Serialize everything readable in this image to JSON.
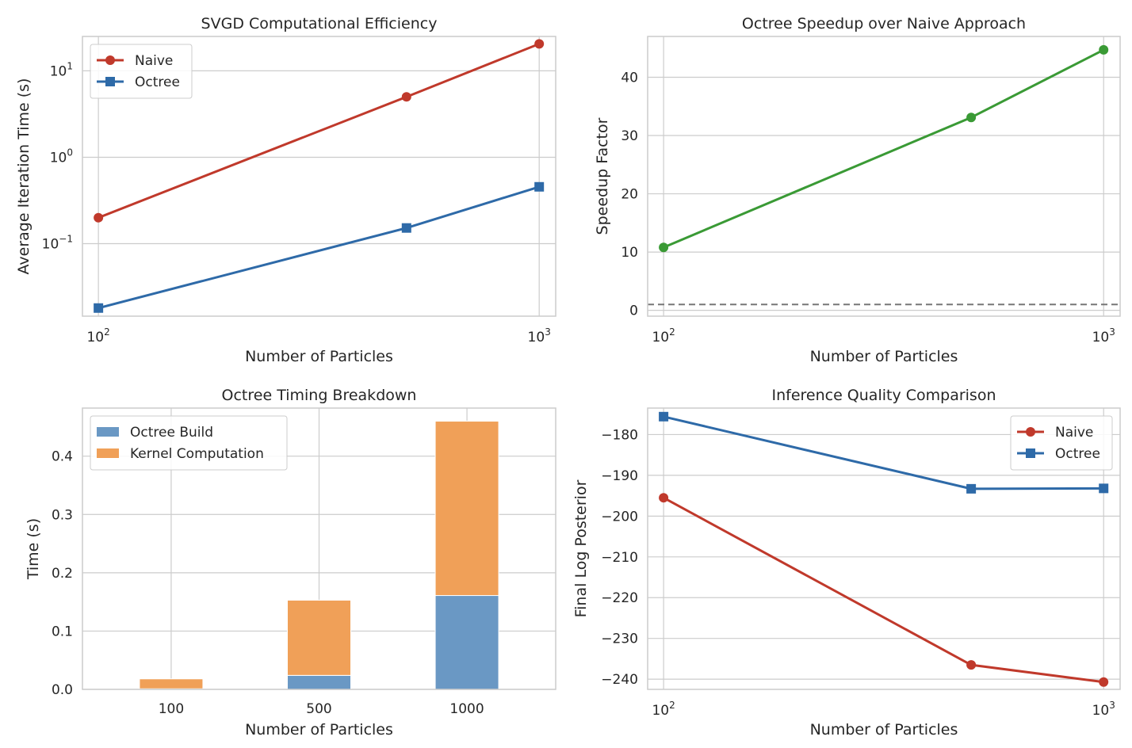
{
  "chart_data": [
    {
      "id": "efficiency",
      "type": "line",
      "title": "SVGD Computational Efficiency",
      "xlabel": "Number of Particles",
      "ylabel": "Average Iteration Time (s)",
      "xscale": "log",
      "yscale": "log",
      "xlim": [
        92,
        1090
      ],
      "ylim": [
        0.0145,
        25
      ],
      "xticks": [
        {
          "value": 100,
          "base": "10",
          "exp": "2"
        },
        {
          "value": 1000,
          "base": "10",
          "exp": "3"
        }
      ],
      "yticks": [
        {
          "value": 0.1,
          "base": "10",
          "exp": "−1"
        },
        {
          "value": 1,
          "base": "10",
          "exp": "0"
        },
        {
          "value": 10,
          "base": "10",
          "exp": "1"
        }
      ],
      "legend": "top-left",
      "x": [
        100,
        500,
        1000
      ],
      "series": [
        {
          "name": "Naive",
          "color": "#c0392b",
          "marker": "circle",
          "values": [
            0.2,
            5.0,
            20.5
          ]
        },
        {
          "name": "Octree",
          "color": "#2e6aa8",
          "marker": "square",
          "values": [
            0.018,
            0.152,
            0.455
          ]
        }
      ]
    },
    {
      "id": "speedup",
      "type": "line",
      "title": "Octree Speedup over Naive Approach",
      "xlabel": "Number of Particles",
      "ylabel": "Speedup Factor",
      "xscale": "log",
      "yscale": "linear",
      "xlim": [
        92,
        1090
      ],
      "ylim": [
        -1.0,
        47.0
      ],
      "xticks": [
        {
          "value": 100,
          "base": "10",
          "exp": "2"
        },
        {
          "value": 1000,
          "base": "10",
          "exp": "3"
        }
      ],
      "yticks": [
        {
          "value": 0,
          "label": "0"
        },
        {
          "value": 10,
          "label": "10"
        },
        {
          "value": 20,
          "label": "20"
        },
        {
          "value": 30,
          "label": "30"
        },
        {
          "value": 40,
          "label": "40"
        }
      ],
      "reference_line": {
        "y": 1,
        "style": "dashed",
        "color": "#777777"
      },
      "x": [
        100,
        500,
        1000
      ],
      "series": [
        {
          "name": "Speedup",
          "color": "#3a9a35",
          "marker": "circle",
          "values": [
            10.8,
            33.1,
            44.7
          ]
        }
      ]
    },
    {
      "id": "breakdown",
      "type": "bar",
      "stacked": true,
      "title": "Octree Timing Breakdown",
      "xlabel": "Number of Particles",
      "ylabel": "Time (s)",
      "categories": [
        "100",
        "500",
        "1000"
      ],
      "ylim": [
        0,
        0.4825
      ],
      "yticks": [
        {
          "value": 0.0,
          "label": "0.0"
        },
        {
          "value": 0.1,
          "label": "0.1"
        },
        {
          "value": 0.2,
          "label": "0.2"
        },
        {
          "value": 0.3,
          "label": "0.3"
        },
        {
          "value": 0.4,
          "label": "0.4"
        }
      ],
      "legend": "top-left",
      "series": [
        {
          "name": "Octree Build",
          "color": "#6a98c4",
          "values": [
            0.001,
            0.024,
            0.161
          ]
        },
        {
          "name": "Kernel Computation",
          "color": "#f0a058",
          "values": [
            0.017,
            0.129,
            0.299
          ]
        }
      ]
    },
    {
      "id": "quality",
      "type": "line",
      "title": "Inference Quality Comparison",
      "xlabel": "Number of Particles",
      "ylabel": "Final Log Posterior",
      "xscale": "log",
      "yscale": "linear",
      "xlim": [
        92,
        1090
      ],
      "ylim": [
        -242.5,
        -173.5
      ],
      "xticks": [
        {
          "value": 100,
          "base": "10",
          "exp": "2"
        },
        {
          "value": 1000,
          "base": "10",
          "exp": "3"
        }
      ],
      "yticks": [
        {
          "value": -240,
          "label": "−240"
        },
        {
          "value": -230,
          "label": "−230"
        },
        {
          "value": -220,
          "label": "−220"
        },
        {
          "value": -210,
          "label": "−210"
        },
        {
          "value": -200,
          "label": "−200"
        },
        {
          "value": -190,
          "label": "−190"
        },
        {
          "value": -180,
          "label": "−180"
        }
      ],
      "legend": "top-right",
      "x": [
        100,
        500,
        1000
      ],
      "series": [
        {
          "name": "Naive",
          "color": "#c0392b",
          "marker": "circle",
          "values": [
            -195.5,
            -236.5,
            -240.7
          ]
        },
        {
          "name": "Octree",
          "color": "#2e6aa8",
          "marker": "square",
          "values": [
            -175.6,
            -193.3,
            -193.2
          ]
        }
      ]
    }
  ]
}
